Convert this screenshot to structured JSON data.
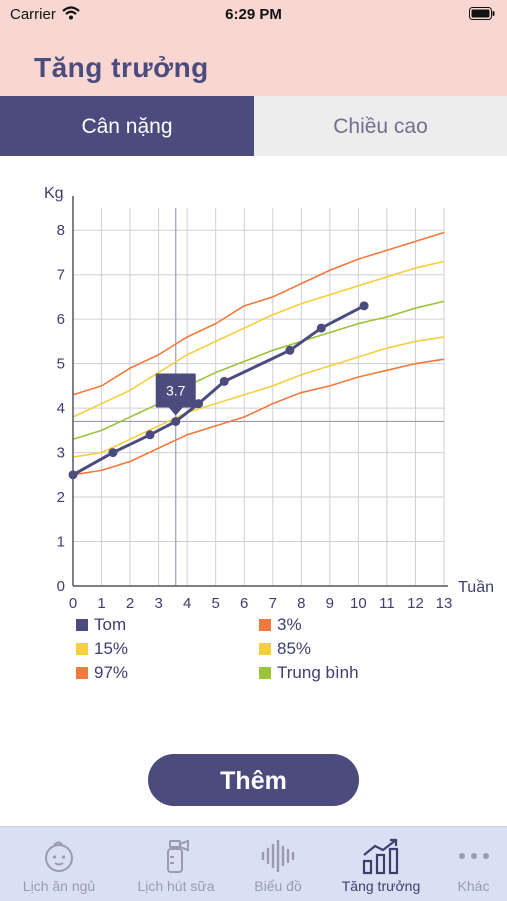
{
  "status_bar": {
    "carrier": "Carrier",
    "time": "6:29 PM"
  },
  "header": {
    "title": "Tăng trưởng"
  },
  "tabs": [
    {
      "label": "Cân nặng",
      "active": true
    },
    {
      "label": "Chiều cao",
      "active": false
    }
  ],
  "chart_data": {
    "type": "line",
    "ylabel": "Kg",
    "xlabel": "Tuần",
    "xlim": [
      0,
      13
    ],
    "ylim": [
      0,
      8.5
    ],
    "x_ticks": [
      0,
      1,
      2,
      3,
      4,
      5,
      6,
      7,
      8,
      9,
      10,
      11,
      12,
      13
    ],
    "y_ticks": [
      0,
      1,
      2,
      3,
      4,
      5,
      6,
      7,
      8
    ],
    "grid": true,
    "series": [
      {
        "name": "3%",
        "color": "#f07a3e",
        "x": [
          0,
          1,
          2,
          3,
          4,
          5,
          6,
          7,
          8,
          9,
          10,
          11,
          12,
          13
        ],
        "y": [
          2.5,
          2.6,
          2.8,
          3.1,
          3.4,
          3.6,
          3.8,
          4.1,
          4.35,
          4.5,
          4.7,
          4.85,
          5.0,
          5.1
        ]
      },
      {
        "name": "15%",
        "color": "#f6cf3e",
        "x": [
          0,
          1,
          2,
          3,
          4,
          5,
          6,
          7,
          8,
          9,
          10,
          11,
          12,
          13
        ],
        "y": [
          2.9,
          3.0,
          3.3,
          3.6,
          3.9,
          4.1,
          4.3,
          4.5,
          4.75,
          4.95,
          5.15,
          5.35,
          5.5,
          5.6
        ]
      },
      {
        "name": "Trung bình",
        "color": "#9ac43c",
        "x": [
          0,
          1,
          2,
          3,
          4,
          5,
          6,
          7,
          8,
          9,
          10,
          11,
          12,
          13
        ],
        "y": [
          3.3,
          3.5,
          3.8,
          4.1,
          4.5,
          4.8,
          5.05,
          5.3,
          5.5,
          5.7,
          5.9,
          6.05,
          6.25,
          6.4
        ]
      },
      {
        "name": "85%",
        "color": "#f6cf3e",
        "x": [
          0,
          1,
          2,
          3,
          4,
          5,
          6,
          7,
          8,
          9,
          10,
          11,
          12,
          13
        ],
        "y": [
          3.8,
          4.1,
          4.4,
          4.8,
          5.2,
          5.5,
          5.8,
          6.1,
          6.35,
          6.55,
          6.75,
          6.95,
          7.15,
          7.3
        ]
      },
      {
        "name": "97%",
        "color": "#f07a3e",
        "x": [
          0,
          1,
          2,
          3,
          4,
          5,
          6,
          7,
          8,
          9,
          10,
          11,
          12,
          13
        ],
        "y": [
          4.3,
          4.5,
          4.9,
          5.2,
          5.6,
          5.9,
          6.3,
          6.5,
          6.8,
          7.1,
          7.35,
          7.55,
          7.75,
          7.95
        ]
      },
      {
        "name": "Tom",
        "color": "#4b4b7d",
        "x": [
          0,
          1.4,
          2.7,
          3.6,
          4.4,
          5.3,
          7.6,
          8.7,
          10.2
        ],
        "y": [
          2.5,
          3.0,
          3.4,
          3.7,
          4.1,
          4.6,
          5.3,
          5.8,
          6.3
        ]
      }
    ],
    "selected": {
      "x": 3.6,
      "y": 3.7,
      "label": "3.7"
    }
  },
  "legend": [
    {
      "label": "Tom",
      "color": "#4b4b7d"
    },
    {
      "label": "3%",
      "color": "#f07a3e"
    },
    {
      "label": "15%",
      "color": "#f6cf3e"
    },
    {
      "label": "85%",
      "color": "#f6cf3e"
    },
    {
      "label": "97%",
      "color": "#f07a3e"
    },
    {
      "label": "Trung bình",
      "color": "#9ac43c"
    }
  ],
  "actions": {
    "add_label": "Thêm"
  },
  "tabbar": [
    {
      "label": "Lịch ăn ngủ",
      "icon": "baby-face-icon",
      "active": false
    },
    {
      "label": "Lịch hút sữa",
      "icon": "breast-pump-icon",
      "active": false
    },
    {
      "label": "Biểu đồ",
      "icon": "waveform-icon",
      "active": false
    },
    {
      "label": "Tăng trưởng",
      "icon": "growth-chart-icon",
      "active": true
    },
    {
      "label": "Khác",
      "icon": "more-dots-icon",
      "active": false
    }
  ]
}
